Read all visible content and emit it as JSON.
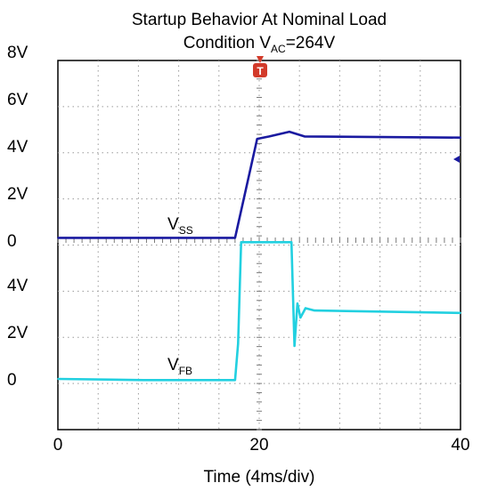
{
  "chart_data": {
    "type": "line",
    "title_line1": "Startup Behavior At Nominal Load",
    "title_line2_main": "Condition V",
    "title_line2_sub": "AC",
    "title_line2_rest": "=264V",
    "xlabel": "Time (4ms/div)",
    "xlim": [
      0,
      40
    ],
    "x_ticks": [
      "0",
      "20",
      "40"
    ],
    "y_ticks_upper": [
      "8V",
      "6V",
      "4V",
      "2V",
      "0"
    ],
    "y_ticks_lower": [
      "4V",
      "2V",
      "0"
    ],
    "grid": true,
    "trigger_marker": "T",
    "series": [
      {
        "name_main": "V",
        "name_sub": "SS",
        "color": "#1a1aa0",
        "axis": "upper",
        "x": [
          0,
          17.6,
          19.8,
          21.0,
          23.0,
          24.5,
          40
        ],
        "y": [
          0.1,
          0.1,
          4.3,
          4.4,
          4.6,
          4.4,
          4.35
        ]
      },
      {
        "name_main": "V",
        "name_sub": "FB",
        "color": "#22d0e0",
        "axis": "lower",
        "x": [
          0,
          8.5,
          17.6,
          17.9,
          18.2,
          23.2,
          23.5,
          23.8,
          24.1,
          24.6,
          25.5,
          40
        ],
        "y": [
          0.0,
          -0.05,
          -0.05,
          1.5,
          5.8,
          5.8,
          1.4,
          3.2,
          2.6,
          3.0,
          2.9,
          2.8
        ]
      }
    ]
  }
}
